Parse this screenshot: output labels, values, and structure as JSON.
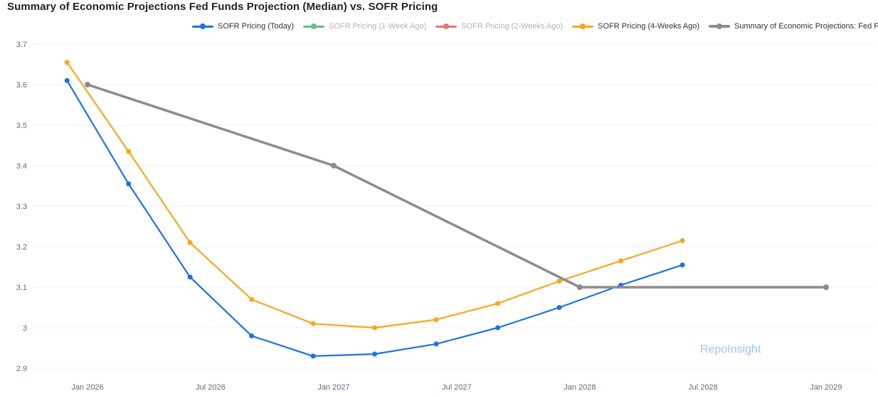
{
  "title": "Summary of Economic Projections Fed Funds Projection (Median) vs. SOFR Pricing",
  "watermark": "RepoInsight",
  "colors": {
    "blue": "#1a73e8",
    "green": "#69bd87",
    "red": "#e8756a",
    "orange": "#f9a61c",
    "gray": "#8c8c8c",
    "watermark": "#9fc3e8",
    "grid": "#eef0f3",
    "axis_text": "#5f6b7c",
    "title_text": "#1f2328",
    "legend_text": "#333333",
    "legend_text_disabled": "#b3b3b3"
  },
  "legend": {
    "items": [
      {
        "label": "SOFR Pricing (Today)",
        "color": "blue",
        "active": true,
        "thick": false
      },
      {
        "label": "SOFR Pricing (1-Week Ago)",
        "color": "green",
        "active": false,
        "thick": false
      },
      {
        "label": "SOFR Pricing (2-Weeks Ago)",
        "color": "red",
        "active": false,
        "thick": false
      },
      {
        "label": "SOFR Pricing (4-Weeks Ago)",
        "color": "orange",
        "active": true,
        "thick": false
      },
      {
        "label": "Summary of Economic Projections: Fed Funds Rate",
        "color": "gray",
        "active": true,
        "thick": true
      }
    ]
  },
  "chart_data": {
    "type": "line",
    "title": "Summary of Economic Projections Fed Funds Projection (Median) vs. SOFR Pricing",
    "xlabel": "",
    "ylabel": "",
    "ylim": [
      2.9,
      3.7
    ],
    "grid": true,
    "legend_position": "top",
    "y_ticks": [
      {
        "label": "3.7",
        "value": 3.7
      },
      {
        "label": "3.6",
        "value": 3.6
      },
      {
        "label": "3.5",
        "value": 3.5
      },
      {
        "label": "3.4",
        "value": 3.4
      },
      {
        "label": "3.3",
        "value": 3.3
      },
      {
        "label": "3.2",
        "value": 3.2
      },
      {
        "label": "3.1",
        "value": 3.1
      },
      {
        "label": "3",
        "value": 3.0
      },
      {
        "label": "2.9",
        "value": 2.9
      }
    ],
    "x_ticks": [
      {
        "label": "Jan 2026",
        "month": 1
      },
      {
        "label": "Jul 2026",
        "month": 7
      },
      {
        "label": "Jan 2027",
        "month": 13
      },
      {
        "label": "Jul 2027",
        "month": 19
      },
      {
        "label": "Jan 2028",
        "month": 25
      },
      {
        "label": "Jul 2028",
        "month": 31
      },
      {
        "label": "Jan 2029",
        "month": 37
      }
    ],
    "series": [
      {
        "name": "SOFR Pricing (Today)",
        "color": "blue",
        "visible": true,
        "x_dates": [
          "Dec 2025",
          "Mar 2026",
          "Jun 2026",
          "Sep 2026",
          "Dec 2026",
          "Mar 2027",
          "Jun 2027",
          "Sep 2027",
          "Dec 2027",
          "Mar 2028",
          "Jun 2028"
        ],
        "x_months": [
          0,
          3,
          6,
          9,
          12,
          15,
          18,
          21,
          24,
          27,
          30
        ],
        "values": [
          3.61,
          3.355,
          3.125,
          2.98,
          2.93,
          2.935,
          2.96,
          3.0,
          3.05,
          3.105,
          3.155
        ]
      },
      {
        "name": "SOFR Pricing (1-Week Ago)",
        "color": "green",
        "visible": false,
        "x_dates": [],
        "x_months": [],
        "values": []
      },
      {
        "name": "SOFR Pricing (2-Weeks Ago)",
        "color": "red",
        "visible": false,
        "x_dates": [],
        "x_months": [],
        "values": []
      },
      {
        "name": "SOFR Pricing (4-Weeks Ago)",
        "color": "orange",
        "visible": true,
        "x_dates": [
          "Dec 2025",
          "Mar 2026",
          "Jun 2026",
          "Sep 2026",
          "Dec 2026",
          "Mar 2027",
          "Jun 2027",
          "Sep 2027",
          "Dec 2027",
          "Mar 2028",
          "Jun 2028"
        ],
        "x_months": [
          0,
          3,
          6,
          9,
          12,
          15,
          18,
          21,
          24,
          27,
          30
        ],
        "values": [
          3.655,
          3.435,
          3.21,
          3.07,
          3.01,
          3.0,
          3.02,
          3.06,
          3.115,
          3.165,
          3.215
        ]
      },
      {
        "name": "Summary of Economic Projections: Fed Funds Rate",
        "color": "gray",
        "visible": true,
        "x_dates": [
          "Jan 2026",
          "Jan 2027",
          "Jan 2028",
          "Jan 2029"
        ],
        "x_months": [
          1,
          13,
          25,
          37
        ],
        "values": [
          3.6,
          3.4,
          3.1,
          3.1
        ]
      }
    ]
  }
}
